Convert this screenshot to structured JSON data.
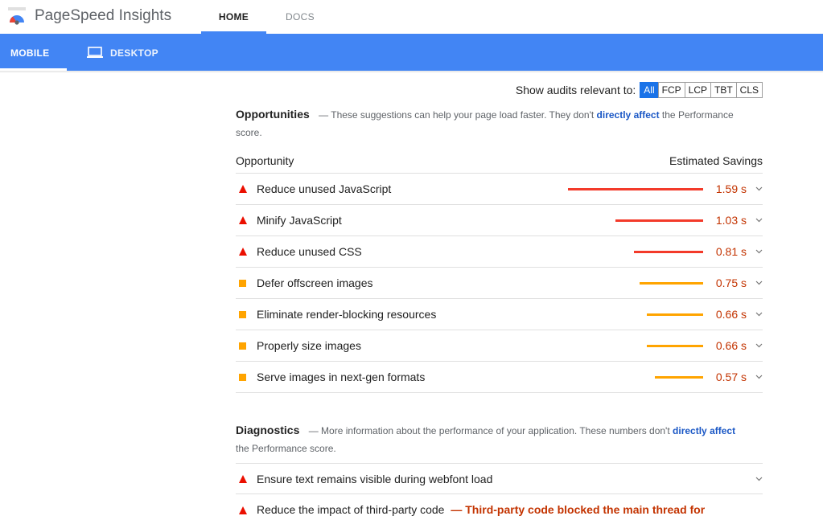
{
  "app": {
    "title": "PageSpeed Insights"
  },
  "top_tabs": [
    {
      "label": "HOME"
    },
    {
      "label": "DOCS"
    }
  ],
  "device_tabs": [
    {
      "label": "MOBILE"
    },
    {
      "label": "DESKTOP",
      "icon": "laptop-icon"
    }
  ],
  "filter": {
    "label": "Show audits relevant to:",
    "options": [
      "All",
      "FCP",
      "LCP",
      "TBT",
      "CLS"
    ],
    "selected": "All"
  },
  "opportunities": {
    "title": "Opportunities",
    "desc_prefix": "— These suggestions can help your page load faster. They don't",
    "desc_link": "directly affect",
    "desc_suffix": "the Performance score.",
    "col_left": "Opportunity",
    "col_right": "Estimated Savings",
    "items": [
      {
        "title": "Reduce unused JavaScript",
        "value": "1.59 s",
        "savings": 1.59,
        "severity": "fail"
      },
      {
        "title": "Minify JavaScript",
        "value": "1.03 s",
        "savings": 1.03,
        "severity": "fail"
      },
      {
        "title": "Reduce unused CSS",
        "value": "0.81 s",
        "savings": 0.81,
        "severity": "fail"
      },
      {
        "title": "Defer offscreen images",
        "value": "0.75 s",
        "savings": 0.75,
        "severity": "average"
      },
      {
        "title": "Eliminate render-blocking resources",
        "value": "0.66 s",
        "savings": 0.66,
        "severity": "average"
      },
      {
        "title": "Properly size images",
        "value": "0.66 s",
        "savings": 0.66,
        "severity": "average"
      },
      {
        "title": "Serve images in next-gen formats",
        "value": "0.57 s",
        "savings": 0.57,
        "severity": "average"
      }
    ]
  },
  "diagnostics": {
    "title": "Diagnostics",
    "desc_prefix": "— More information about the performance of your application. These numbers don't",
    "desc_link_1": "directly",
    "desc_link_2": "affect",
    "desc_suffix": "the Performance score.",
    "items": [
      {
        "title": "Ensure text remains visible during webfont load",
        "severity": "fail"
      },
      {
        "title": "Reduce the impact of third-party code",
        "warning": "— Third-party code blocked the main thread for",
        "severity": "fail"
      }
    ]
  },
  "colors": {
    "fail": "#eb0f00",
    "average": "#ffa400",
    "value": "#c33300",
    "accent": "#4285f4",
    "fail_bar": "#f33a2a"
  }
}
